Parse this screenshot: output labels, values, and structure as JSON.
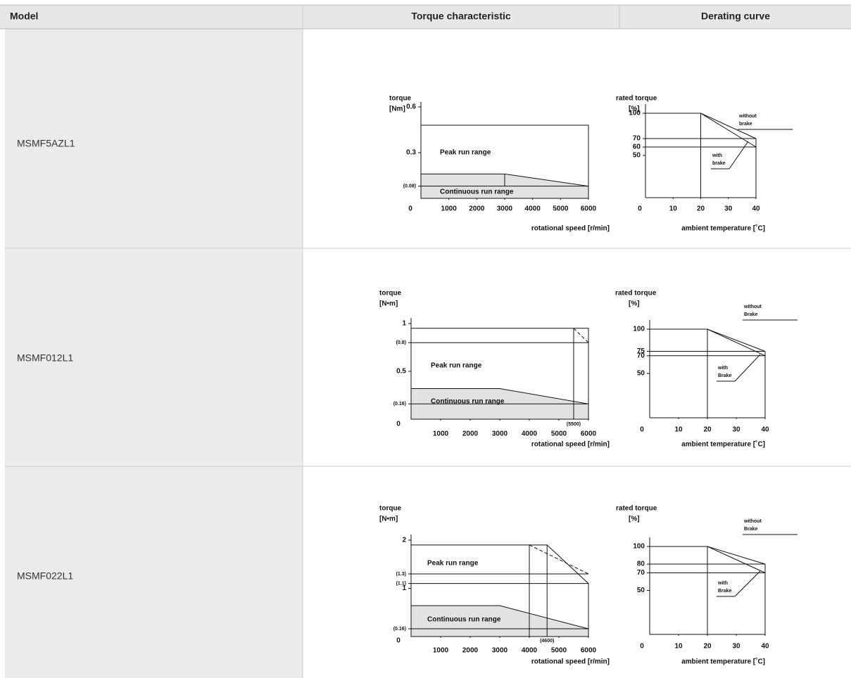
{
  "table": {
    "header": [
      "Model",
      "Torque characteristic",
      "Derating curve"
    ],
    "rows": [
      {
        "model": "MSMF5AZL1",
        "torque_chart": {
          "y_title": [
            "torque",
            "[Nm]"
          ],
          "origin_label": "0",
          "x_title": "rotational speed [r/min]",
          "xlim": [
            0,
            6000
          ],
          "ylim": [
            0,
            0.6
          ],
          "xticks": [
            1000,
            2000,
            3000,
            4000,
            5000,
            6000
          ],
          "yticks": [
            0.6,
            0.3,
            {
              "value": 0.08,
              "label": "(0.08)"
            }
          ],
          "marker_ticks": [],
          "peak": {
            "label": "Peak run range",
            "points": [
              [
                0,
                0
              ],
              [
                0,
                0.48
              ],
              [
                6000,
                0.48
              ],
              [
                6000,
                0
              ]
            ]
          },
          "continuous": {
            "label": "Continuous run range",
            "points": [
              [
                0,
                0
              ],
              [
                0,
                0.16
              ],
              [
                3000,
                0.16
              ],
              [
                6000,
                0.08
              ],
              [
                6000,
                0
              ]
            ]
          },
          "lines": [
            [
              [
                0,
                0.08
              ],
              [
                6000,
                0.08
              ]
            ],
            [
              [
                3000,
                0.16
              ],
              [
                3000,
                0.08
              ]
            ]
          ],
          "dashed": []
        },
        "derating_chart": {
          "y_title": [
            "rated torque",
            "[%]"
          ],
          "origin_label": "0",
          "x_title": "ambient temperature [˚C]",
          "xlim": [
            0,
            40
          ],
          "ylim": [
            0,
            100
          ],
          "xticks": [
            10,
            20,
            30,
            40
          ],
          "yticks": [
            100,
            70,
            60,
            50
          ],
          "curves": [
            {
              "name": [
                "without",
                "brake"
              ],
              "points": [
                [
                  0,
                  100
                ],
                [
                  20,
                  100
                ],
                [
                  40,
                  70
                ]
              ]
            },
            {
              "name": [
                "with",
                "brake"
              ],
              "points": [
                [
                  20,
                  100
                ],
                [
                  40,
                  60
                ]
              ]
            }
          ],
          "lines": [
            [
              [
                0,
                70
              ],
              [
                40,
                70
              ]
            ],
            [
              [
                0,
                60
              ],
              [
                40,
                60
              ]
            ],
            [
              [
                20,
                0
              ],
              [
                20,
                100
              ]
            ],
            [
              [
                40,
                0
              ],
              [
                40,
                70
              ]
            ]
          ]
        }
      },
      {
        "model": "MSMF012L1",
        "torque_chart": {
          "y_title": [
            "torque",
            "[N•m]"
          ],
          "origin_label": "0",
          "x_title": "rotational speed [r/min]",
          "xlim": [
            0,
            6000
          ],
          "ylim": [
            0,
            1.0
          ],
          "xticks": [
            1000,
            2000,
            3000,
            4000,
            5000,
            6000
          ],
          "yticks": [
            1.0,
            {
              "value": 0.8,
              "label": "(0.8)"
            },
            0.5,
            {
              "value": 0.16,
              "label": "(0.16)"
            }
          ],
          "marker_ticks": [
            {
              "value": 5500,
              "label": "(5500)"
            }
          ],
          "peak": {
            "label": "Peak run range",
            "points": [
              [
                0,
                0
              ],
              [
                0,
                0.95
              ],
              [
                6000,
                0.95
              ],
              [
                6000,
                0
              ]
            ]
          },
          "continuous": {
            "label": "Continuous run range",
            "points": [
              [
                0,
                0
              ],
              [
                0,
                0.32
              ],
              [
                3000,
                0.32
              ],
              [
                6000,
                0.16
              ],
              [
                6000,
                0
              ]
            ]
          },
          "lines": [
            [
              [
                0,
                0.8
              ],
              [
                6000,
                0.8
              ]
            ],
            [
              [
                0,
                0.16
              ],
              [
                6000,
                0.16
              ]
            ],
            [
              [
                5500,
                0
              ],
              [
                5500,
                0.95
              ]
            ]
          ],
          "dashed": [
            [
              [
                5500,
                0.95
              ],
              [
                6000,
                0.8
              ]
            ]
          ]
        },
        "derating_chart": {
          "y_title": [
            "rated torque",
            "[%]"
          ],
          "origin_label": "0",
          "x_title": "ambient temperature [˚C]",
          "xlim": [
            0,
            40
          ],
          "ylim": [
            0,
            100
          ],
          "xticks": [
            10,
            20,
            30,
            40
          ],
          "yticks": [
            100,
            75,
            70,
            50
          ],
          "curves": [
            {
              "name": [
                "without",
                "Brake"
              ],
              "points": [
                [
                  0,
                  100
                ],
                [
                  20,
                  100
                ],
                [
                  40,
                  75
                ]
              ]
            },
            {
              "name": [
                "with",
                "Brake"
              ],
              "points": [
                [
                  20,
                  100
                ],
                [
                  40,
                  70
                ]
              ]
            }
          ],
          "lines": [
            [
              [
                0,
                75
              ],
              [
                40,
                75
              ]
            ],
            [
              [
                0,
                70
              ],
              [
                40,
                70
              ]
            ],
            [
              [
                20,
                0
              ],
              [
                20,
                100
              ]
            ],
            [
              [
                40,
                0
              ],
              [
                40,
                75
              ]
            ]
          ]
        }
      },
      {
        "model": "MSMF022L1",
        "torque_chart": {
          "y_title": [
            "torque",
            "[N•m]"
          ],
          "origin_label": "0",
          "x_title": "rotational speed [r/min]",
          "xlim": [
            0,
            6000
          ],
          "ylim": [
            0,
            2.0
          ],
          "xticks": [
            1000,
            2000,
            3000,
            4000,
            5000,
            6000
          ],
          "yticks": [
            2.0,
            {
              "value": 1.3,
              "label": "(1.3)"
            },
            {
              "value": 1.1,
              "label": "(1.1)"
            },
            1.0,
            {
              "value": 0.16,
              "label": "(0.16)"
            }
          ],
          "marker_ticks": [
            {
              "value": 4600,
              "label": "(4600)"
            }
          ],
          "peak": {
            "label": "Peak run range",
            "points": [
              [
                0,
                0
              ],
              [
                0,
                1.9
              ],
              [
                4600,
                1.9
              ],
              [
                6000,
                1.1
              ],
              [
                6000,
                0
              ]
            ]
          },
          "continuous": {
            "label": "Continuous run range",
            "points": [
              [
                0,
                0
              ],
              [
                0,
                0.64
              ],
              [
                3000,
                0.64
              ],
              [
                6000,
                0.16
              ],
              [
                6000,
                0
              ]
            ]
          },
          "lines": [
            [
              [
                0,
                1.3
              ],
              [
                6000,
                1.3
              ]
            ],
            [
              [
                0,
                1.1
              ],
              [
                6000,
                1.1
              ]
            ],
            [
              [
                0,
                0.16
              ],
              [
                6000,
                0.16
              ]
            ],
            [
              [
                4000,
                0
              ],
              [
                4000,
                1.9
              ]
            ],
            [
              [
                4600,
                0
              ],
              [
                4600,
                1.9
              ]
            ]
          ],
          "dashed": [
            [
              [
                4000,
                1.9
              ],
              [
                6000,
                1.3
              ]
            ]
          ]
        },
        "derating_chart": {
          "y_title": [
            "rated torque",
            "[%]"
          ],
          "origin_label": "0",
          "x_title": "ambient temperature [˚C]",
          "xlim": [
            0,
            40
          ],
          "ylim": [
            0,
            100
          ],
          "xticks": [
            10,
            20,
            30,
            40
          ],
          "yticks": [
            100,
            80,
            70,
            50
          ],
          "curves": [
            {
              "name": [
                "without",
                "Brake"
              ],
              "points": [
                [
                  0,
                  100
                ],
                [
                  20,
                  100
                ],
                [
                  40,
                  80
                ]
              ]
            },
            {
              "name": [
                "with",
                "Brake"
              ],
              "points": [
                [
                  20,
                  100
                ],
                [
                  40,
                  70
                ]
              ]
            }
          ],
          "lines": [
            [
              [
                0,
                80
              ],
              [
                40,
                80
              ]
            ],
            [
              [
                0,
                70
              ],
              [
                40,
                70
              ]
            ],
            [
              [
                20,
                0
              ],
              [
                20,
                100
              ]
            ],
            [
              [
                40,
                0
              ],
              [
                40,
                80
              ]
            ]
          ]
        }
      }
    ]
  }
}
